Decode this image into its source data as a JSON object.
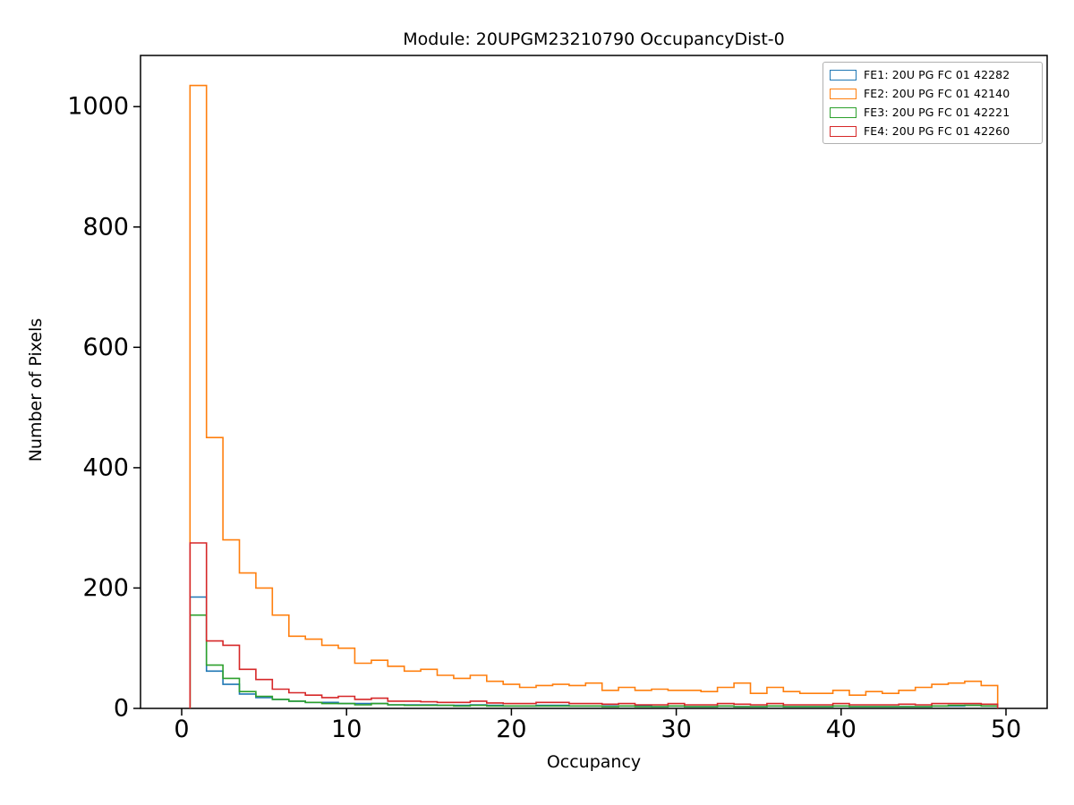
{
  "figure": {
    "title": "Module: 20UPGM23210790 OccupancyDist-0",
    "xlabel": "Occupancy",
    "ylabel": "Number of Pixels"
  },
  "chart_data": {
    "type": "step-histogram",
    "title": "Module: 20UPGM23210790 OccupancyDist-0",
    "xlabel": "Occupancy",
    "ylabel": "Number of Pixels",
    "bin_start": 0.5,
    "bin_width": 1,
    "xlim": [
      -2.5,
      52.5
    ],
    "ylim": [
      0,
      1085
    ],
    "xticks": [
      0,
      10,
      20,
      30,
      40,
      50
    ],
    "yticks": [
      0,
      200,
      400,
      600,
      800,
      1000
    ],
    "grid": false,
    "legend_position": "upper right",
    "series": [
      {
        "name": "FE1: 20U PG FC 01 42282",
        "color": "#1f77b4",
        "values": [
          185,
          62,
          40,
          24,
          18,
          15,
          12,
          10,
          10,
          8,
          8,
          8,
          6,
          6,
          6,
          5,
          5,
          6,
          5,
          4,
          4,
          5,
          5,
          4,
          4,
          4,
          4,
          4,
          3,
          4,
          3,
          3,
          4,
          3,
          3,
          4,
          3,
          3,
          3,
          4,
          3,
          3,
          3,
          3,
          3,
          4,
          4,
          5,
          4
        ]
      },
      {
        "name": "FE2: 20U PG FC 01 42140",
        "color": "#ff7f0e",
        "values": [
          1035,
          450,
          280,
          225,
          200,
          155,
          120,
          115,
          105,
          100,
          75,
          80,
          70,
          62,
          65,
          55,
          50,
          55,
          45,
          40,
          35,
          38,
          40,
          38,
          42,
          30,
          35,
          30,
          32,
          30,
          30,
          28,
          35,
          42,
          25,
          35,
          28,
          25,
          25,
          30,
          22,
          28,
          25,
          30,
          35,
          40,
          42,
          45,
          38
        ]
      },
      {
        "name": "FE3: 20U PG FC 01 42221",
        "color": "#2ca02c",
        "values": [
          155,
          72,
          50,
          28,
          20,
          15,
          12,
          10,
          8,
          8,
          6,
          8,
          6,
          5,
          5,
          5,
          4,
          5,
          4,
          4,
          4,
          4,
          4,
          4,
          4,
          3,
          4,
          3,
          3,
          4,
          3,
          3,
          4,
          3,
          3,
          4,
          3,
          3,
          3,
          4,
          3,
          3,
          3,
          3,
          3,
          4,
          5,
          5,
          4
        ]
      },
      {
        "name": "FE4: 20U PG FC 01 42260",
        "color": "#d62728",
        "values": [
          275,
          112,
          105,
          65,
          48,
          32,
          26,
          22,
          18,
          20,
          15,
          17,
          12,
          12,
          11,
          10,
          10,
          12,
          9,
          8,
          8,
          10,
          10,
          8,
          8,
          7,
          8,
          6,
          6,
          8,
          6,
          6,
          8,
          7,
          6,
          8,
          6,
          6,
          6,
          8,
          6,
          6,
          6,
          7,
          6,
          8,
          8,
          8,
          7
        ]
      }
    ]
  }
}
